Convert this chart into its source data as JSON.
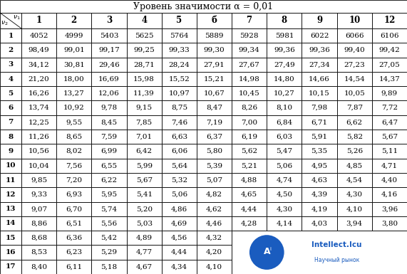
{
  "title": "Уровень значимости α = 0,01",
  "col_headers": [
    "1",
    "2",
    "3",
    "4",
    "5",
    "б",
    "7",
    "8",
    "9",
    "10",
    "12"
  ],
  "row_headers": [
    "1",
    "2",
    "3",
    "4",
    "5",
    "6",
    "7",
    "8",
    "9",
    "10",
    "11",
    "12",
    "13",
    "14",
    "15",
    "16",
    "17"
  ],
  "data": [
    [
      "4052",
      "4999",
      "5403",
      "5625",
      "5764",
      "5889",
      "5928",
      "5981",
      "6022",
      "6066",
      "6106"
    ],
    [
      "98,49",
      "99,01",
      "99,17",
      "99,25",
      "99,33",
      "99,30",
      "99,34",
      "99,36",
      "99,36",
      "99,40",
      "99,42"
    ],
    [
      "34,12",
      "30,81",
      "29,46",
      "28,71",
      "28,24",
      "27,91",
      "27,67",
      "27,49",
      "27,34",
      "27,23",
      "27,05"
    ],
    [
      "21,20",
      "18,00",
      "16,69",
      "15,98",
      "15,52",
      "15,21",
      "14,98",
      "14,80",
      "14,66",
      "14,54",
      "14,37"
    ],
    [
      "16,26",
      "13,27",
      "12,06",
      "11,39",
      "10,97",
      "10,67",
      "10,45",
      "10,27",
      "10,15",
      "10,05",
      "9,89"
    ],
    [
      "13,74",
      "10,92",
      "9,78",
      "9,15",
      "8,75",
      "8,47",
      "8,26",
      "8,10",
      "7,98",
      "7,87",
      "7,72"
    ],
    [
      "12,25",
      "9,55",
      "8,45",
      "7,85",
      "7,46",
      "7,19",
      "7,00",
      "6,84",
      "6,71",
      "6,62",
      "6,47"
    ],
    [
      "11,26",
      "8,65",
      "7,59",
      "7,01",
      "6,63",
      "6,37",
      "6,19",
      "6,03",
      "5,91",
      "5,82",
      "5,67"
    ],
    [
      "10,56",
      "8,02",
      "6,99",
      "6,42",
      "6,06",
      "5,80",
      "5,62",
      "5,47",
      "5,35",
      "5,26",
      "5,11"
    ],
    [
      "10,04",
      "7,56",
      "6,55",
      "5,99",
      "5,64",
      "5,39",
      "5,21",
      "5,06",
      "4,95",
      "4,85",
      "4,71"
    ],
    [
      "9,85",
      "7,20",
      "6,22",
      "5,67",
      "5,32",
      "5,07",
      "4,88",
      "4,74",
      "4,63",
      "4,54",
      "4,40"
    ],
    [
      "9,33",
      "6,93",
      "5,95",
      "5,41",
      "5,06",
      "4,82",
      "4,65",
      "4,50",
      "4,39",
      "4,30",
      "4,16"
    ],
    [
      "9,07",
      "6,70",
      "5,74",
      "5,20",
      "4,86",
      "4,62",
      "4,44",
      "4,30",
      "4,19",
      "4,10",
      "3,96"
    ],
    [
      "8,86",
      "6,51",
      "5,56",
      "5,03",
      "4,69",
      "4,46",
      "4,28",
      "4,14",
      "4,03",
      "3,94",
      "3,80"
    ],
    [
      "8,68",
      "6,36",
      "5,42",
      "4,89",
      "4,56",
      "4,32",
      "",
      "",
      "",
      "",
      ""
    ],
    [
      "8,53",
      "6,23",
      "5,29",
      "4,77",
      "4,44",
      "4,20",
      "",
      "",
      "",
      "",
      ""
    ],
    [
      "8,40",
      "6,11",
      "5,18",
      "4,67",
      "4,34",
      "4,10",
      "",
      "",
      "",
      "",
      ""
    ]
  ],
  "bg_color": "#ffffff",
  "grid_color": "#000000",
  "text_color": "#000000",
  "title_fontsize": 9,
  "cell_fontsize": 7.5,
  "header_fontsize": 8.5,
  "watermark_blue": "#1a5cbf",
  "watermark_text1": "Intellect.Icu",
  "watermark_text2": "Научный рынок"
}
